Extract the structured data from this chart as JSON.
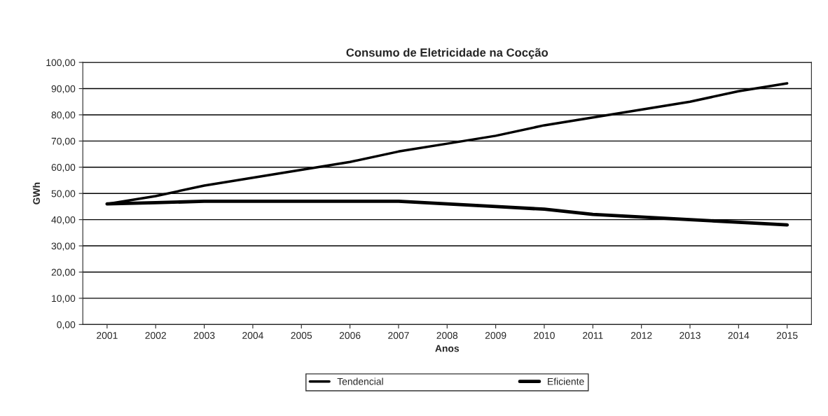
{
  "chart_data": {
    "type": "line",
    "title": "Consumo de Eletricidade na Cocção",
    "xlabel": "Anos",
    "ylabel": "GWh",
    "categories": [
      "2001",
      "2002",
      "2003",
      "2004",
      "2005",
      "2006",
      "2007",
      "2008",
      "2009",
      "2010",
      "2011",
      "2012",
      "2013",
      "2014",
      "2015"
    ],
    "series": [
      {
        "name": "Tendencial",
        "color": "#000000",
        "values": [
          46,
          49,
          53,
          56,
          59,
          62,
          66,
          69,
          72,
          76,
          79,
          82,
          85,
          89,
          92
        ]
      },
      {
        "name": "Eficiente",
        "color": "#000000",
        "values": [
          46,
          46.5,
          47,
          47,
          47,
          47,
          47,
          46,
          45,
          44,
          42,
          41,
          40,
          39,
          38
        ]
      }
    ],
    "ylim": [
      0,
      100
    ],
    "yticks": [
      {
        "value": 0,
        "label": "0,00"
      },
      {
        "value": 10,
        "label": "10,00"
      },
      {
        "value": 20,
        "label": "20,00"
      },
      {
        "value": 30,
        "label": "30,00"
      },
      {
        "value": 40,
        "label": "40,00"
      },
      {
        "value": 50,
        "label": "50,00"
      },
      {
        "value": 60,
        "label": "60,00"
      },
      {
        "value": 70,
        "label": "70,00"
      },
      {
        "value": 80,
        "label": "80,00"
      },
      {
        "value": 90,
        "label": "90,00"
      },
      {
        "value": 100,
        "label": "100,00"
      }
    ],
    "grid": "y",
    "legend": "bottom",
    "marker": "none",
    "line_style": "solid"
  }
}
